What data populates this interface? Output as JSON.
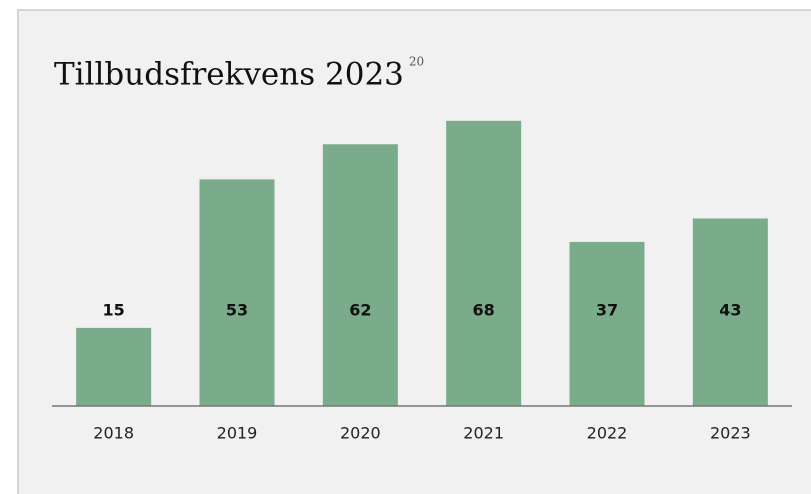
{
  "chart_data": {
    "type": "bar",
    "title": "Tillbudsfrekvens 2023",
    "footnote": "20",
    "categories": [
      "2018",
      "2019",
      "2020",
      "2021",
      "2022",
      "2023"
    ],
    "values": [
      15,
      53,
      62,
      68,
      37,
      43
    ],
    "color": "#7aab8a",
    "ylim": [
      -5,
      70
    ]
  }
}
